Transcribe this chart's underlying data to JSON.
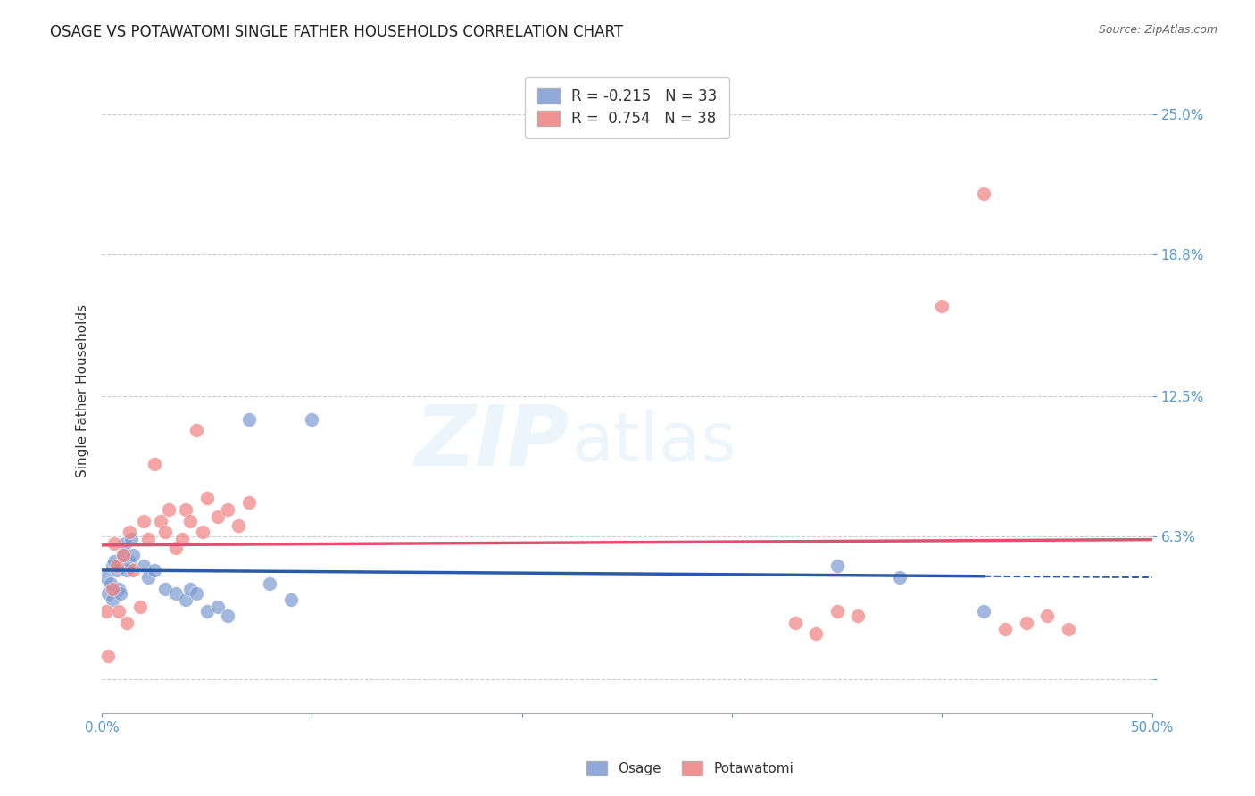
{
  "title": "OSAGE VS POTAWATOMI SINGLE FATHER HOUSEHOLDS CORRELATION CHART",
  "source": "Source: ZipAtlas.com",
  "ylabel": "Single Father Households",
  "xlim": [
    0.0,
    0.5
  ],
  "ylim": [
    -0.015,
    0.27
  ],
  "osage_R": -0.215,
  "osage_N": 33,
  "potawatomi_R": 0.754,
  "potawatomi_N": 38,
  "osage_color": "#7B9BD2",
  "potawatomi_color": "#F08080",
  "osage_line_color": "#2B5BA8",
  "potawatomi_line_color": "#E05070",
  "background_color": "#ffffff",
  "osage_x": [
    0.002,
    0.003,
    0.004,
    0.005,
    0.005,
    0.006,
    0.007,
    0.008,
    0.009,
    0.01,
    0.011,
    0.012,
    0.013,
    0.014,
    0.015,
    0.02,
    0.022,
    0.025,
    0.03,
    0.035,
    0.04,
    0.042,
    0.045,
    0.05,
    0.055,
    0.06,
    0.07,
    0.08,
    0.09,
    0.1,
    0.35,
    0.38,
    0.42
  ],
  "osage_y": [
    0.045,
    0.038,
    0.042,
    0.05,
    0.035,
    0.052,
    0.048,
    0.04,
    0.038,
    0.055,
    0.06,
    0.048,
    0.052,
    0.062,
    0.055,
    0.05,
    0.045,
    0.048,
    0.04,
    0.038,
    0.035,
    0.04,
    0.038,
    0.03,
    0.032,
    0.028,
    0.115,
    0.042,
    0.035,
    0.115,
    0.05,
    0.045,
    0.03
  ],
  "potawatomi_x": [
    0.002,
    0.003,
    0.005,
    0.006,
    0.007,
    0.008,
    0.01,
    0.012,
    0.013,
    0.015,
    0.018,
    0.02,
    0.022,
    0.025,
    0.028,
    0.03,
    0.032,
    0.035,
    0.038,
    0.04,
    0.042,
    0.045,
    0.048,
    0.05,
    0.055,
    0.06,
    0.065,
    0.07,
    0.33,
    0.34,
    0.35,
    0.36,
    0.4,
    0.42,
    0.43,
    0.44,
    0.45,
    0.46
  ],
  "potawatomi_y": [
    0.03,
    0.01,
    0.04,
    0.06,
    0.05,
    0.03,
    0.055,
    0.025,
    0.065,
    0.048,
    0.032,
    0.07,
    0.062,
    0.095,
    0.07,
    0.065,
    0.075,
    0.058,
    0.062,
    0.075,
    0.07,
    0.11,
    0.065,
    0.08,
    0.072,
    0.075,
    0.068,
    0.078,
    0.025,
    0.02,
    0.03,
    0.028,
    0.165,
    0.215,
    0.022,
    0.025,
    0.028,
    0.022
  ],
  "ytick_vals": [
    0.0,
    0.063,
    0.125,
    0.188,
    0.25
  ],
  "ytick_labels": [
    "",
    "6.3%",
    "12.5%",
    "18.8%",
    "25.0%"
  ],
  "xtick_vals": [
    0.0,
    0.1,
    0.2,
    0.3,
    0.4,
    0.5
  ],
  "xtick_labels": [
    "0.0%",
    "",
    "",
    "",
    "",
    "50.0%"
  ],
  "tick_color": "#5599cc",
  "grid_color": "#cccccc",
  "watermark_color": "#ddeef8",
  "watermark_alpha": 0.55
}
